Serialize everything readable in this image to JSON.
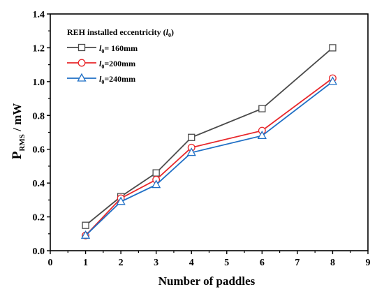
{
  "chart_data": {
    "type": "line",
    "xlabel": "Number of paddles",
    "ylabel_main": "P",
    "ylabel_sub": "RMS",
    "ylabel_unit": " / mW",
    "xlim": [
      0,
      9
    ],
    "ylim": [
      0.0,
      1.4
    ],
    "xticks": [
      0,
      1,
      2,
      3,
      4,
      5,
      6,
      7,
      8,
      9
    ],
    "xtick_labels": [
      "0",
      "1",
      "2",
      "3",
      "4",
      "5",
      "6",
      "7",
      "8",
      "9"
    ],
    "yticks": [
      0.0,
      0.2,
      0.4,
      0.6,
      0.8,
      1.0,
      1.2,
      1.4
    ],
    "ytick_labels": [
      "0.0",
      "0.2",
      "0.4",
      "0.6",
      "0.8",
      "1.0",
      "1.2",
      "1.4"
    ],
    "grid": false,
    "legend": {
      "placement": "top-left",
      "title_main": "REH installed eccentricity (",
      "title_var": "l",
      "title_sub": "0",
      "title_end": ")"
    },
    "series": [
      {
        "name_var": "l",
        "name_sub": "0",
        "name_rest": "= 160mm",
        "color": "#4a4a4a",
        "marker": "square",
        "x": [
          1,
          2,
          3,
          4,
          6,
          8
        ],
        "y": [
          0.15,
          0.32,
          0.46,
          0.67,
          0.84,
          1.2
        ]
      },
      {
        "name_var": "l",
        "name_sub": "0",
        "name_rest": "=200mm",
        "color": "#e8262a",
        "marker": "circle",
        "x": [
          1,
          2,
          3,
          4,
          6,
          8
        ],
        "y": [
          0.09,
          0.31,
          0.42,
          0.61,
          0.71,
          1.02
        ]
      },
      {
        "name_var": "l",
        "name_sub": "0",
        "name_rest": "=240mm",
        "color": "#1f6fc5",
        "marker": "triangle",
        "x": [
          1,
          2,
          3,
          4,
          6,
          8
        ],
        "y": [
          0.09,
          0.29,
          0.39,
          0.58,
          0.68,
          1.0
        ]
      }
    ]
  }
}
